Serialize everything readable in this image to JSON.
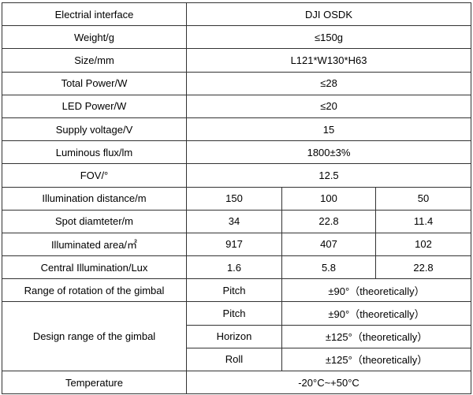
{
  "table": {
    "rows": [
      [
        "Electrial interface",
        "DJI OSDK"
      ],
      [
        "Weight/g",
        "≤150g"
      ],
      [
        "Size/mm",
        "L121*W130*H63"
      ],
      [
        "Total Power/W",
        "≤28"
      ],
      [
        "LED Power/W",
        "≤20"
      ],
      [
        "Supply voltage/V",
        "15"
      ],
      [
        "Luminous flux/lm",
        "1800±3%"
      ],
      [
        "FOV/°",
        "12.5"
      ],
      [
        "Illumination distance/m",
        "150",
        "100",
        "50"
      ],
      [
        "Spot diamteter/m",
        "34",
        "22.8",
        "11.4"
      ],
      [
        "Illuminated area/㎡",
        "917",
        "407",
        "102"
      ],
      [
        "Central Illumination/Lux",
        "1.6",
        "5.8",
        "22.8"
      ],
      [
        "Range of rotation of the gimbal",
        "Pitch",
        "±90°（theoretically）"
      ],
      [
        "Design range of the gimbal",
        "Pitch",
        "±90°（theoretically）"
      ],
      [
        "Horizon",
        "±125°（theoretically）"
      ],
      [
        "Roll",
        "±125°（theoretically）"
      ],
      [
        "Temperature",
        "-20°C~+50°C"
      ]
    ]
  }
}
